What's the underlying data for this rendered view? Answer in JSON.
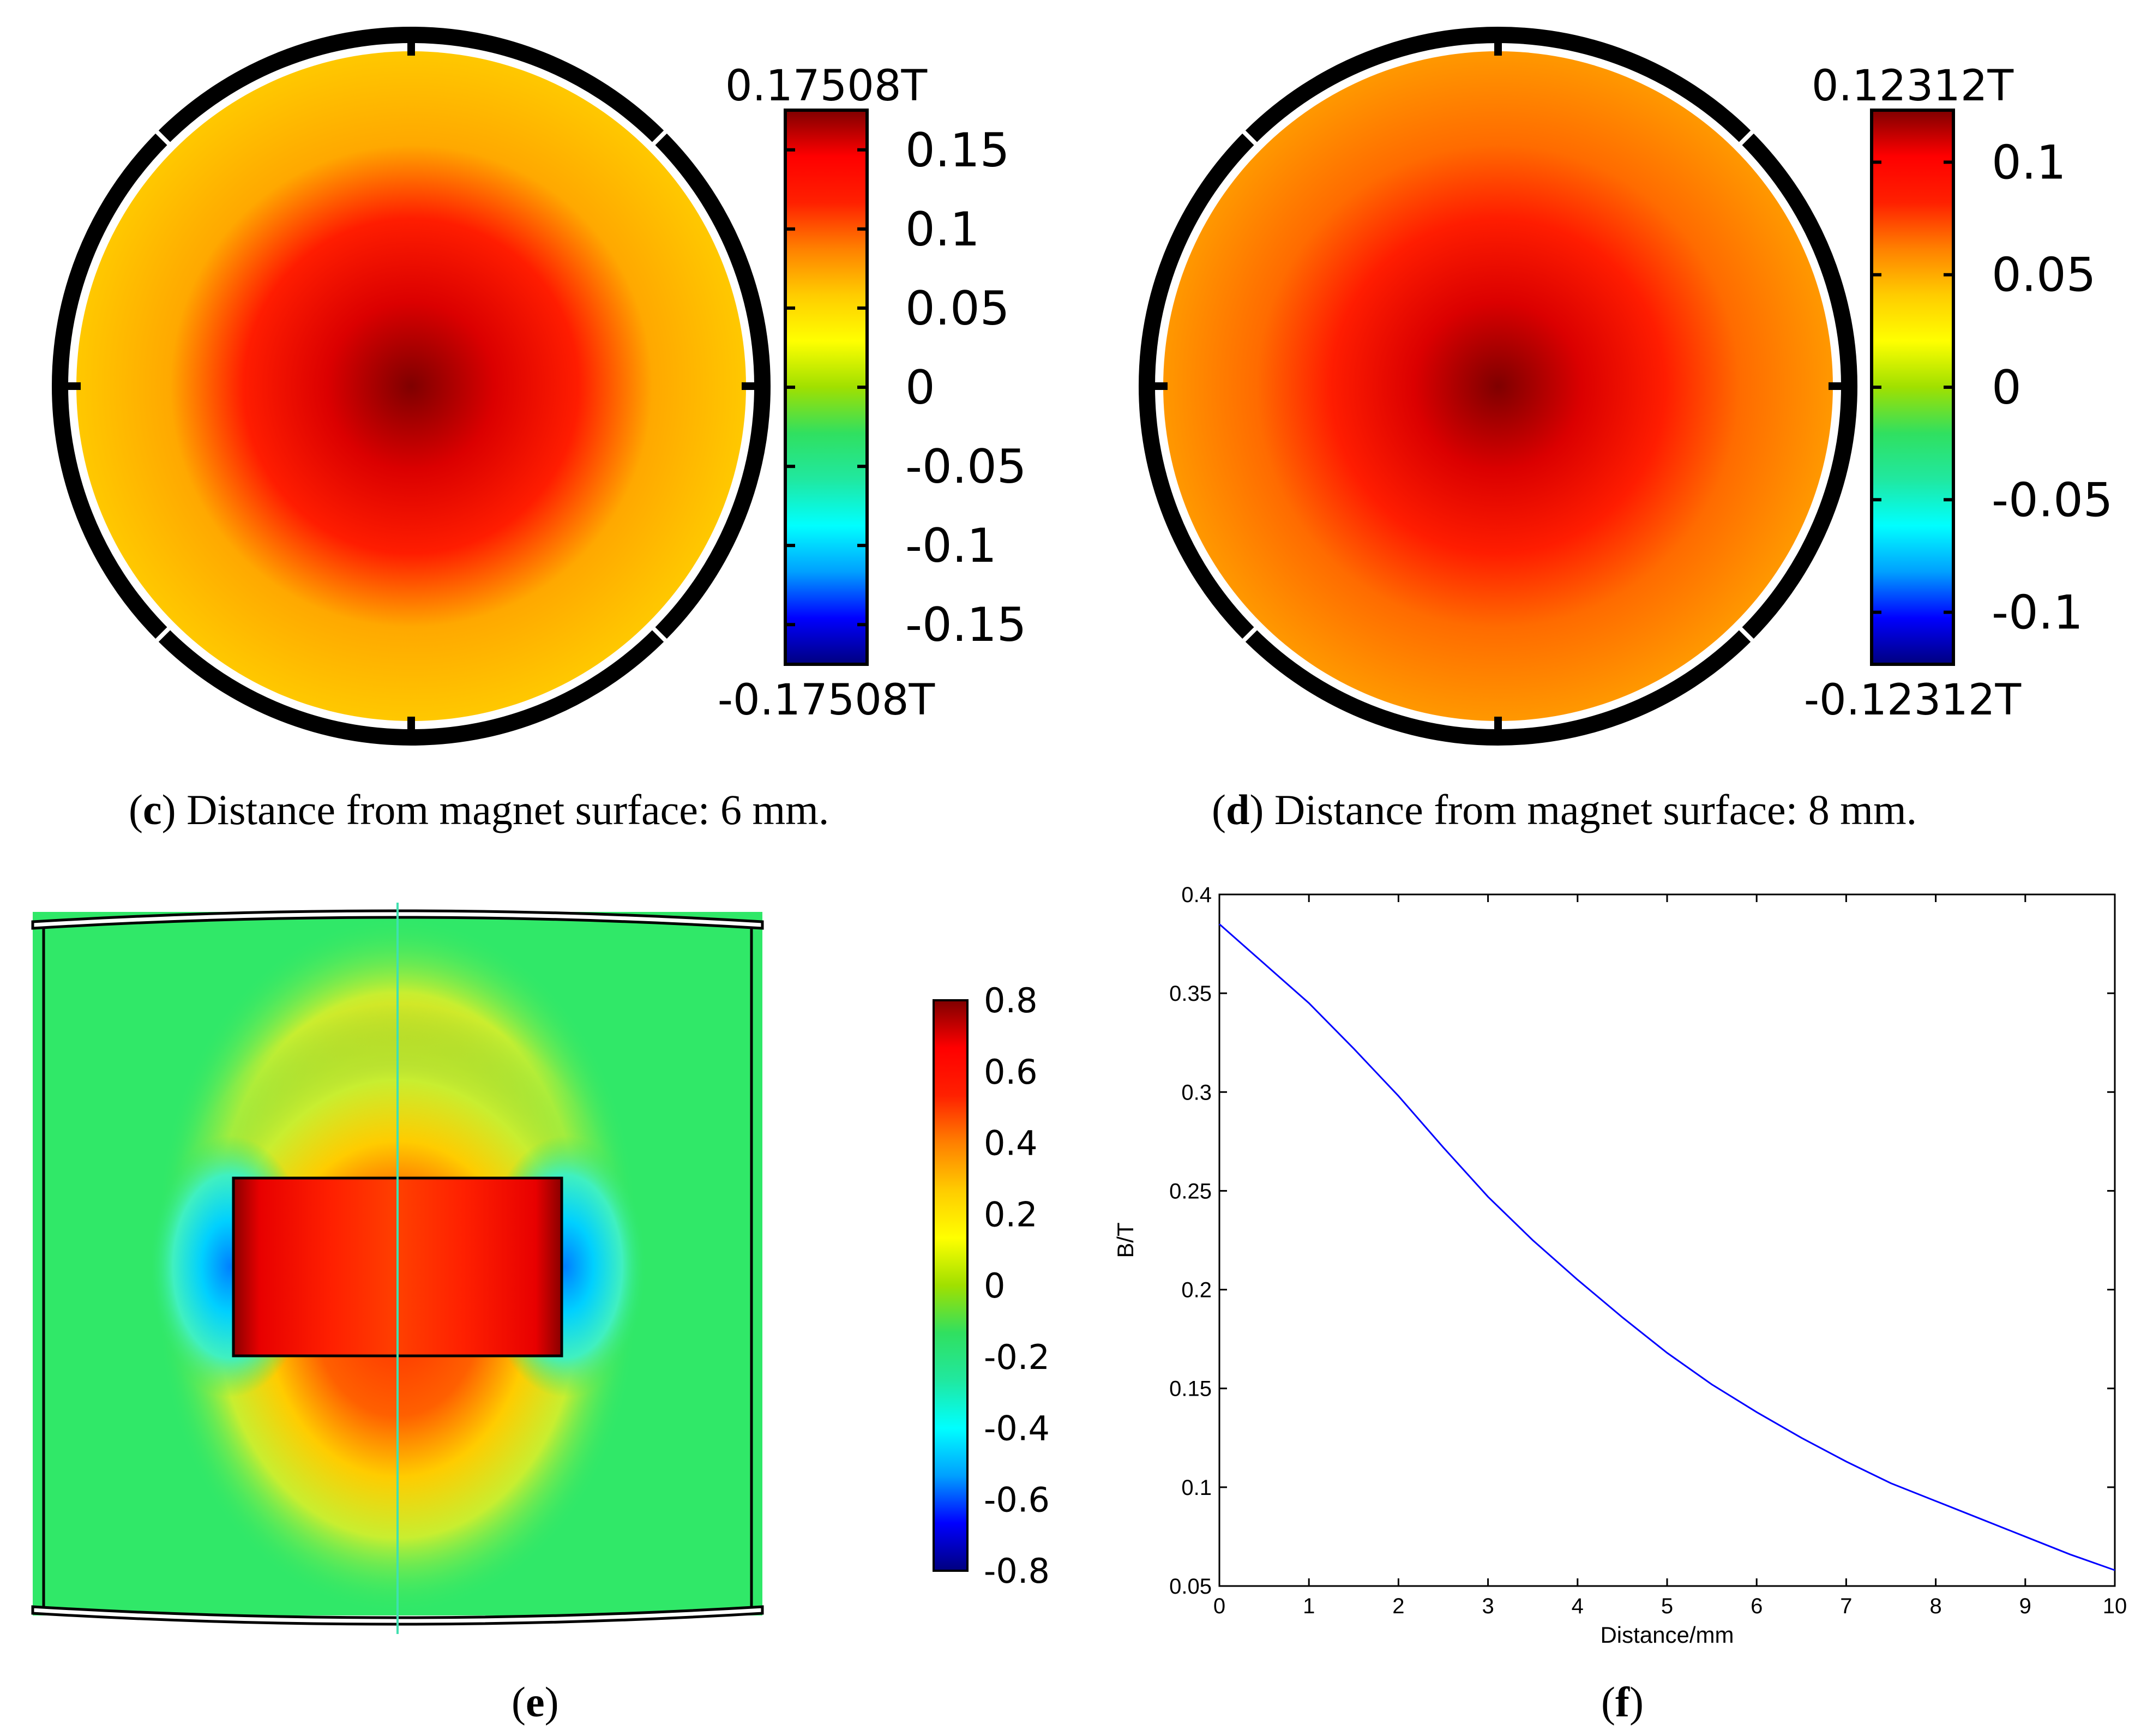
{
  "panels": {
    "c": {
      "letter": "c",
      "caption": ") Distance from magnet surface: 6 mm.",
      "colorbar": {
        "max_label": "0.17508T",
        "min_label": "-0.17508T",
        "range": [
          -0.17508,
          0.17508
        ],
        "ticks": [
          0.15,
          0.1,
          0.05,
          0,
          -0.05,
          -0.1,
          -0.15
        ],
        "tick_labels": [
          "0.15",
          "0.1",
          "0.05",
          "0",
          "-0.05",
          "-0.1",
          "-0.15"
        ]
      }
    },
    "d": {
      "letter": "d",
      "caption": ") Distance from magnet surface: 8 mm.",
      "colorbar": {
        "max_label": "0.12312T",
        "min_label": "-0.12312T",
        "range": [
          -0.12312,
          0.12312
        ],
        "ticks": [
          0.1,
          0.05,
          0,
          -0.05,
          -0.1
        ],
        "tick_labels": [
          "0.1",
          "0.05",
          "0",
          "-0.05",
          "-0.1"
        ]
      }
    },
    "e": {
      "letter": "e",
      "colorbar": {
        "range": [
          -0.8,
          0.8
        ],
        "ticks": [
          0.8,
          0.6,
          0.4,
          0.2,
          0,
          -0.2,
          -0.4,
          -0.6,
          -0.8
        ],
        "tick_labels": [
          "0.8",
          "0.6",
          "0.4",
          "0.2",
          "0",
          "-0.2",
          "-0.4",
          "-0.6",
          "-0.8"
        ]
      }
    },
    "f": {
      "letter": "f"
    }
  },
  "colormap": [
    "#00007f",
    "#0000ff",
    "#00a0ff",
    "#00ffff",
    "#20e8a0",
    "#30e060",
    "#a0e000",
    "#ffff00",
    "#ffcc00",
    "#ff8000",
    "#ff2000",
    "#ff0000",
    "#7f0000"
  ],
  "colors": {
    "line": "#0000ff",
    "axis": "#000000"
  },
  "chart_data": [
    {
      "panel": "c",
      "type": "heatmap",
      "colorbar_range": [
        -0.17508,
        0.17508
      ],
      "peak_value": 0.17508,
      "peak_location": "center",
      "rim_value": 0.06
    },
    {
      "panel": "d",
      "type": "heatmap",
      "colorbar_range": [
        -0.12312,
        0.12312
      ],
      "peak_value": 0.12312,
      "peak_location": "center",
      "rim_value": 0.055
    },
    {
      "panel": "e",
      "type": "heatmap",
      "colorbar_range": [
        -0.8,
        0.8
      ]
    },
    {
      "panel": "f",
      "type": "line",
      "xlabel": "Distance/mm",
      "ylabel": "B/T",
      "xlim": [
        0,
        10
      ],
      "ylim": [
        0.05,
        0.4
      ],
      "xticks": [
        0,
        1,
        2,
        3,
        4,
        5,
        6,
        7,
        8,
        9,
        10
      ],
      "yticks": [
        0.05,
        0.1,
        0.15,
        0.2,
        0.25,
        0.3,
        0.35,
        0.4
      ],
      "ytick_labels": [
        "0.05",
        "0.1",
        "0.15",
        "0.2",
        "0.25",
        "0.3",
        "0.35",
        "0.4"
      ],
      "grid": false,
      "series": [
        {
          "x": [
            0,
            0.5,
            1,
            1.5,
            2,
            2.5,
            3,
            3.5,
            4,
            4.5,
            5,
            5.5,
            6,
            6.5,
            7,
            7.5,
            8,
            8.5,
            9,
            9.5,
            10
          ],
          "y": [
            0.385,
            0.365,
            0.345,
            0.322,
            0.298,
            0.272,
            0.247,
            0.225,
            0.205,
            0.186,
            0.168,
            0.152,
            0.138,
            0.125,
            0.113,
            0.102,
            0.093,
            0.084,
            0.075,
            0.066,
            0.058
          ]
        }
      ]
    }
  ]
}
